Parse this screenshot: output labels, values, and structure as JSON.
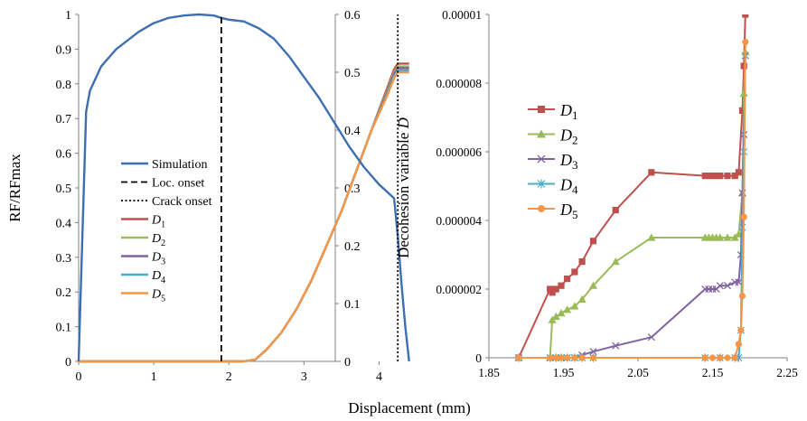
{
  "figure": {
    "xlabel": "Displacement (mm)"
  },
  "chart_data": [
    {
      "type": "line",
      "panel": "left",
      "ylabel": "RF/RFmax",
      "xlim": [
        0,
        4.5
      ],
      "ylim_left": [
        0,
        1
      ],
      "ylim_right": [
        0,
        0.6
      ],
      "x_ticks": [
        "0",
        "1",
        "2",
        "3",
        "4"
      ],
      "y_ticks_left": [
        "0",
        "0.1",
        "0.2",
        "0.3",
        "0.4",
        "0.5",
        "0.6",
        "0.7",
        "0.8",
        "0.9",
        "1"
      ],
      "y_ticks_right": [
        "0",
        "0.1",
        "0.2",
        "0.3",
        "0.4",
        "0.5",
        "0.6"
      ],
      "grid": false,
      "legend_position": "center-left",
      "series": [
        {
          "name": "Simulation",
          "axis": "left",
          "color": "#3e6fb0",
          "style": "solid",
          "x": [
            0,
            0.1,
            0.15,
            0.3,
            0.5,
            0.8,
            1.0,
            1.2,
            1.4,
            1.6,
            1.8,
            1.9,
            2.0,
            2.2,
            2.4,
            2.6,
            2.8,
            3.0,
            3.2,
            3.4,
            3.6,
            3.8,
            4.0,
            4.1,
            4.2,
            4.25,
            4.3,
            4.35,
            4.4
          ],
          "y": [
            0,
            0.72,
            0.78,
            0.85,
            0.9,
            0.95,
            0.975,
            0.99,
            0.997,
            1.0,
            0.997,
            0.99,
            0.985,
            0.98,
            0.96,
            0.93,
            0.88,
            0.82,
            0.76,
            0.69,
            0.62,
            0.56,
            0.51,
            0.49,
            0.47,
            0.36,
            0.22,
            0.1,
            0
          ]
        },
        {
          "name": "Loc. onset",
          "axis": "left",
          "color": "#000000",
          "style": "dashed",
          "x": [
            1.9,
            1.9
          ],
          "y": [
            0,
            1
          ]
        },
        {
          "name": "Crack onset",
          "axis": "left",
          "color": "#000000",
          "style": "dotted",
          "x": [
            4.25,
            4.25
          ],
          "y": [
            0,
            1
          ]
        },
        {
          "name": "D1",
          "axis": "right",
          "color": "#c0504d",
          "style": "solid",
          "x": [
            0,
            2.2,
            2.35,
            2.5,
            2.7,
            2.9,
            3.1,
            3.3,
            3.5,
            3.7,
            3.9,
            4.1,
            4.2,
            4.25,
            4.3,
            4.4
          ],
          "y": [
            0,
            0,
            0.003,
            0.02,
            0.05,
            0.09,
            0.14,
            0.2,
            0.26,
            0.33,
            0.4,
            0.47,
            0.505,
            0.515,
            0.515,
            0.515
          ]
        },
        {
          "name": "D2",
          "axis": "right",
          "color": "#9bbb59",
          "style": "solid",
          "x": [
            0,
            2.2,
            2.35,
            2.5,
            2.7,
            2.9,
            3.1,
            3.3,
            3.5,
            3.7,
            3.9,
            4.1,
            4.2,
            4.25,
            4.3,
            4.4
          ],
          "y": [
            0,
            0,
            0.003,
            0.02,
            0.05,
            0.09,
            0.14,
            0.2,
            0.26,
            0.33,
            0.4,
            0.466,
            0.5,
            0.51,
            0.51,
            0.51
          ]
        },
        {
          "name": "D3",
          "axis": "right",
          "color": "#8064a2",
          "style": "solid",
          "x": [
            0,
            2.2,
            2.35,
            2.5,
            2.7,
            2.9,
            3.1,
            3.3,
            3.5,
            3.7,
            3.9,
            4.1,
            4.2,
            4.25,
            4.3,
            4.4
          ],
          "y": [
            0,
            0,
            0.003,
            0.02,
            0.05,
            0.09,
            0.14,
            0.2,
            0.26,
            0.33,
            0.4,
            0.463,
            0.497,
            0.507,
            0.507,
            0.507
          ]
        },
        {
          "name": "D4",
          "axis": "right",
          "color": "#4bacc6",
          "style": "solid",
          "x": [
            0,
            2.2,
            2.35,
            2.5,
            2.7,
            2.9,
            3.1,
            3.3,
            3.5,
            3.7,
            3.9,
            4.1,
            4.2,
            4.25,
            4.3,
            4.4
          ],
          "y": [
            0,
            0,
            0.003,
            0.02,
            0.05,
            0.09,
            0.14,
            0.2,
            0.26,
            0.33,
            0.4,
            0.46,
            0.493,
            0.503,
            0.503,
            0.503
          ]
        },
        {
          "name": "D5",
          "axis": "right",
          "color": "#f79646",
          "style": "solid",
          "x": [
            0,
            2.2,
            2.35,
            2.5,
            2.7,
            2.9,
            3.1,
            3.3,
            3.5,
            3.7,
            3.9,
            4.1,
            4.2,
            4.25,
            4.3,
            4.4
          ],
          "y": [
            0,
            0,
            0.003,
            0.02,
            0.05,
            0.09,
            0.14,
            0.2,
            0.26,
            0.33,
            0.4,
            0.457,
            0.49,
            0.5,
            0.5,
            0.5
          ]
        }
      ]
    },
    {
      "type": "line",
      "panel": "right",
      "ylabel_prefix": "Decohesion variable ",
      "ylabel_symbol": "D",
      "xlim": [
        1.85,
        2.25
      ],
      "ylim": [
        0,
        1e-05
      ],
      "x_ticks": [
        "1.85",
        "1.95",
        "2.05",
        "2.15",
        "2.25"
      ],
      "y_ticks": [
        "0",
        "0.000002",
        "0.000004",
        "0.000006",
        "0.000008",
        "0.00001"
      ],
      "grid": false,
      "legend_position": "top-left",
      "series": [
        {
          "name": "D1",
          "color": "#c0504d",
          "marker": "square",
          "x": [
            1.89,
            1.932,
            1.935,
            1.94,
            1.947,
            1.955,
            1.965,
            1.975,
            1.99,
            2.02,
            2.068,
            2.14,
            2.145,
            2.15,
            2.155,
            2.16,
            2.17,
            2.18,
            2.185,
            2.19,
            2.192,
            2.194
          ],
          "y": [
            0,
            2e-06,
            1.9e-06,
            2e-06,
            2.1e-06,
            2.3e-06,
            2.5e-06,
            2.8e-06,
            3.4e-06,
            4.3e-06,
            5.4e-06,
            5.3e-06,
            5.3e-06,
            5.3e-06,
            5.3e-06,
            5.3e-06,
            5.3e-06,
            5.3e-06,
            5.4e-06,
            7.2e-06,
            8.5e-06,
            1e-05
          ]
        },
        {
          "name": "D2",
          "color": "#9bbb59",
          "marker": "triangle",
          "x": [
            1.89,
            1.932,
            1.935,
            1.94,
            1.947,
            1.955,
            1.965,
            1.975,
            1.99,
            2.02,
            2.068,
            2.14,
            2.145,
            2.15,
            2.155,
            2.16,
            2.17,
            2.18,
            2.185,
            2.19,
            2.192,
            2.194
          ],
          "y": [
            0,
            0,
            1.1e-06,
            1.2e-06,
            1.3e-06,
            1.4e-06,
            1.5e-06,
            1.7e-06,
            2.1e-06,
            2.8e-06,
            3.5e-06,
            3.5e-06,
            3.5e-06,
            3.5e-06,
            3.5e-06,
            3.5e-06,
            3.5e-06,
            3.5e-06,
            3.6e-06,
            4.8e-06,
            7.7e-06,
            8.9e-06
          ]
        },
        {
          "name": "D3",
          "color": "#8064a2",
          "marker": "x",
          "x": [
            1.89,
            1.932,
            1.94,
            1.947,
            1.955,
            1.965,
            1.975,
            1.99,
            2.02,
            2.068,
            2.14,
            2.145,
            2.15,
            2.155,
            2.16,
            2.17,
            2.18,
            2.185,
            2.188,
            2.19,
            2.192,
            2.194
          ],
          "y": [
            0,
            0,
            0,
            0,
            0,
            0,
            8e-08,
            1.8e-07,
            3.5e-07,
            6e-07,
            2e-06,
            2e-06,
            2e-06,
            2e-06,
            2.1e-06,
            2.1e-06,
            2.2e-06,
            2.2e-06,
            3e-06,
            4.8e-06,
            6.5e-06,
            8.8e-06
          ]
        },
        {
          "name": "D4",
          "color": "#4bacc6",
          "marker": "star",
          "x": [
            1.89,
            1.932,
            1.94,
            1.947,
            1.955,
            1.965,
            1.975,
            1.99,
            2.14,
            2.16,
            2.18,
            2.185,
            2.188,
            2.19,
            2.192,
            2.194
          ],
          "y": [
            0,
            0,
            0,
            0,
            0,
            0,
            0,
            0,
            0,
            0,
            0,
            0,
            8e-07,
            3.8e-06,
            6e-06,
            8.8e-06
          ]
        },
        {
          "name": "D5",
          "color": "#f79646",
          "marker": "circle",
          "x": [
            1.89,
            1.932,
            1.94,
            1.947,
            1.955,
            1.965,
            1.975,
            1.99,
            2.14,
            2.15,
            2.16,
            2.17,
            2.18,
            2.185,
            2.188,
            2.19,
            2.192,
            2.194
          ],
          "y": [
            0,
            0,
            0,
            0,
            0,
            0,
            0,
            0,
            0,
            0,
            0,
            0,
            0,
            4e-07,
            8e-07,
            1.8e-06,
            4.1e-06,
            9.2e-06
          ]
        }
      ]
    }
  ]
}
